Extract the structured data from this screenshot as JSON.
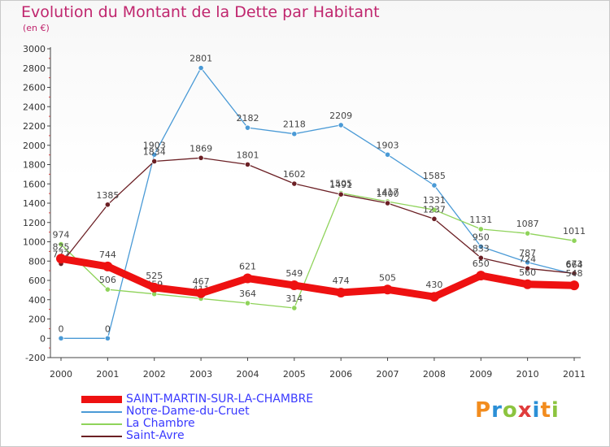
{
  "title": "Evolution du Montant de la Dette par Habitant",
  "subtitle": "(en €)",
  "logo": {
    "text": "Proxiti",
    "colors": [
      "#f28c1e",
      "#2b8fd6",
      "#8cc43f",
      "#e03c3c",
      "#2b8fd6",
      "#f28c1e",
      "#8cc43f"
    ]
  },
  "chart_data": {
    "type": "line",
    "x": [
      "2000",
      "2001",
      "2002",
      "2003",
      "2004",
      "2005",
      "2006",
      "2007",
      "2008",
      "2009",
      "2010",
      "2011"
    ],
    "ylim": [
      -200,
      3000
    ],
    "yticks": [
      "-200",
      "0",
      "200",
      "400",
      "600",
      "800",
      "1000",
      "1200",
      "1400",
      "1600",
      "1800",
      "2000",
      "2200",
      "2400",
      "2600",
      "2800",
      "3000"
    ],
    "grid": false,
    "legend_position": "bottom-left",
    "series": [
      {
        "name": "SAINT-MARTIN-SUR-LA-CHAMBRE",
        "color": "#ee1111",
        "values": [
          825,
          744,
          525,
          467,
          621,
          549,
          474,
          505,
          430,
          650,
          560,
          548
        ],
        "labels": [
          "825",
          "744",
          "525",
          "467",
          "621",
          "549",
          "474",
          "505",
          "430",
          "650",
          "560",
          "548"
        ]
      },
      {
        "name": "Notre-Dame-du-Cruet",
        "color": "#4a9ad6",
        "values": [
          0,
          0,
          1903,
          2801,
          2182,
          2118,
          2209,
          1903,
          1585,
          950,
          787,
          664
        ],
        "labels": [
          "0",
          "0",
          "1903",
          "2801",
          "2182",
          "2118",
          "2209",
          "1903",
          "1585",
          "950",
          "787",
          "664"
        ]
      },
      {
        "name": "La Chambre",
        "color": "#8fd35a",
        "values": [
          974,
          506,
          459,
          411,
          364,
          314,
          1505,
          1417,
          1331,
          1131,
          1087,
          1011
        ],
        "labels": [
          "974",
          "506",
          "459",
          "411",
          "364",
          "314",
          "1505",
          "1417",
          "1331",
          "1131",
          "1087",
          "1011"
        ]
      },
      {
        "name": "Saint-Avre",
        "color": "#6b1f24",
        "values": [
          772,
          1385,
          1834,
          1869,
          1801,
          1602,
          1491,
          1400,
          1237,
          833,
          724,
          673
        ],
        "labels": [
          "772",
          "1385",
          "1834",
          "1869",
          "1801",
          "1602",
          "1491",
          "1400",
          "1237",
          "833",
          "724",
          "673"
        ]
      }
    ]
  }
}
